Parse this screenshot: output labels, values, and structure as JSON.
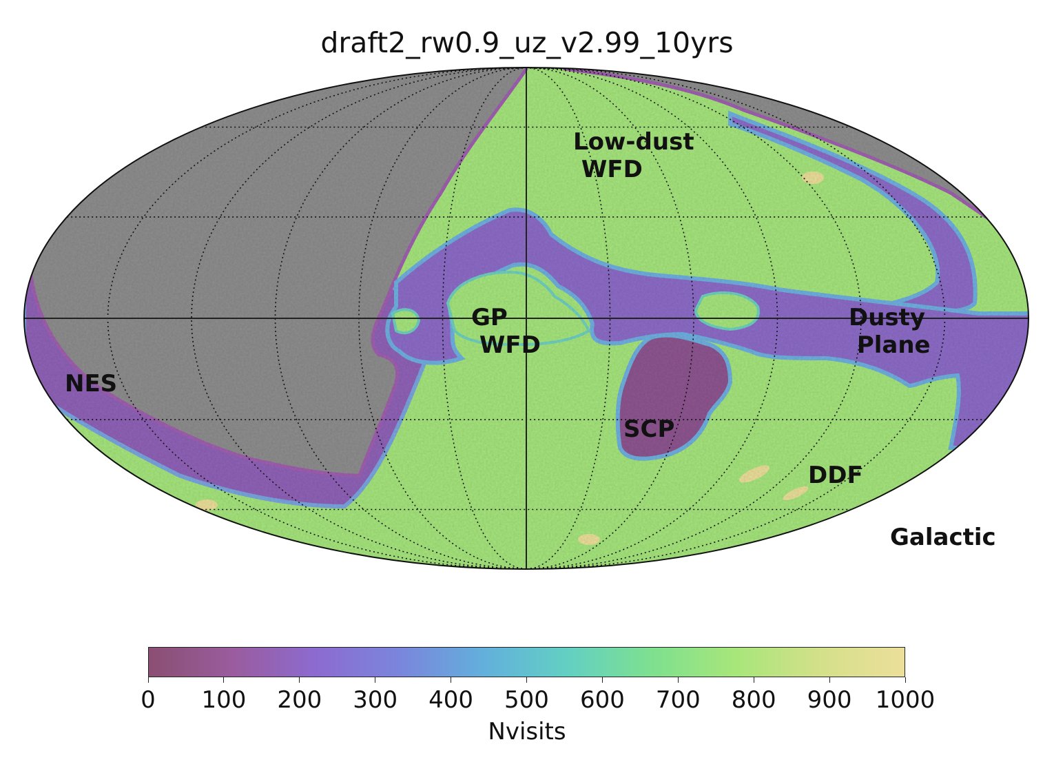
{
  "title": "draft2_rw0.9_uz_v2.99_10yrs",
  "projection": "Mollweide",
  "coordinate_system_label": "Galactic",
  "region_labels": [
    {
      "id": "low-dust-wfd",
      "text": "Low-dust\n WFD"
    },
    {
      "id": "gp-wfd",
      "text": "GP\n WFD"
    },
    {
      "id": "dusty-plane",
      "text": "Dusty\n Plane"
    },
    {
      "id": "nes",
      "text": "NES"
    },
    {
      "id": "scp",
      "text": "SCP"
    },
    {
      "id": "ddf",
      "text": "DDF"
    }
  ],
  "colorbar": {
    "label": "Nvisits",
    "range": [
      0,
      1000
    ],
    "ticks": [
      "0",
      "100",
      "200",
      "300",
      "400",
      "500",
      "600",
      "700",
      "800",
      "900",
      "1000"
    ],
    "colormap_stops": [
      "#8a4f72",
      "#9a5c9e",
      "#8c6bd0",
      "#7a86dc",
      "#62b0dc",
      "#63d0c2",
      "#7ee08f",
      "#a8e67a",
      "#d4e08a",
      "#ecdf9a"
    ]
  },
  "colors": {
    "unobserved": "#8e8e8e",
    "grid": "#111111"
  },
  "map_levels": {
    "unobserved_region": "no visits",
    "wfd_typical_nvisits": 820,
    "dusty_plane_typical_nvisits": 250,
    "nes_typical_nvisits": 230,
    "scp_typical_nvisits": 130,
    "ddf_typical_nvisits": 1000
  }
}
